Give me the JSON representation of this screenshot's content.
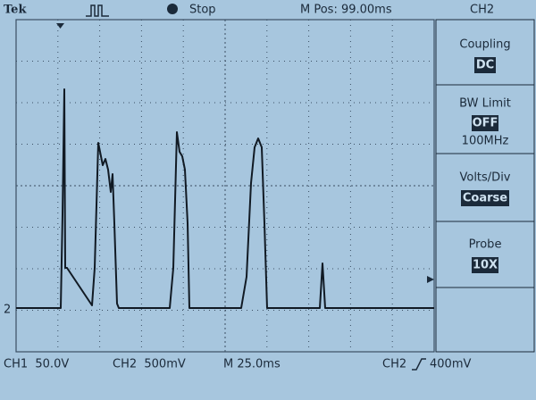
{
  "header": {
    "brand": "Tek",
    "status": "Stop",
    "position": "M Pos: 99.00ms",
    "channel": "CH2"
  },
  "menu": [
    {
      "label": "Coupling",
      "value": "DC"
    },
    {
      "label": "BW Limit",
      "value": "OFF",
      "detail": "100MHz"
    },
    {
      "label": "Volts/Div",
      "value": "Coarse"
    },
    {
      "label": "Probe",
      "value": "10X"
    }
  ],
  "footer": {
    "ch1": "CH1  50.0V",
    "ch2": "CH2  500mV",
    "timebase": "M 25.0ms",
    "trigger_source": "CH2",
    "trigger_level": "400mV"
  },
  "marker": "2"
}
